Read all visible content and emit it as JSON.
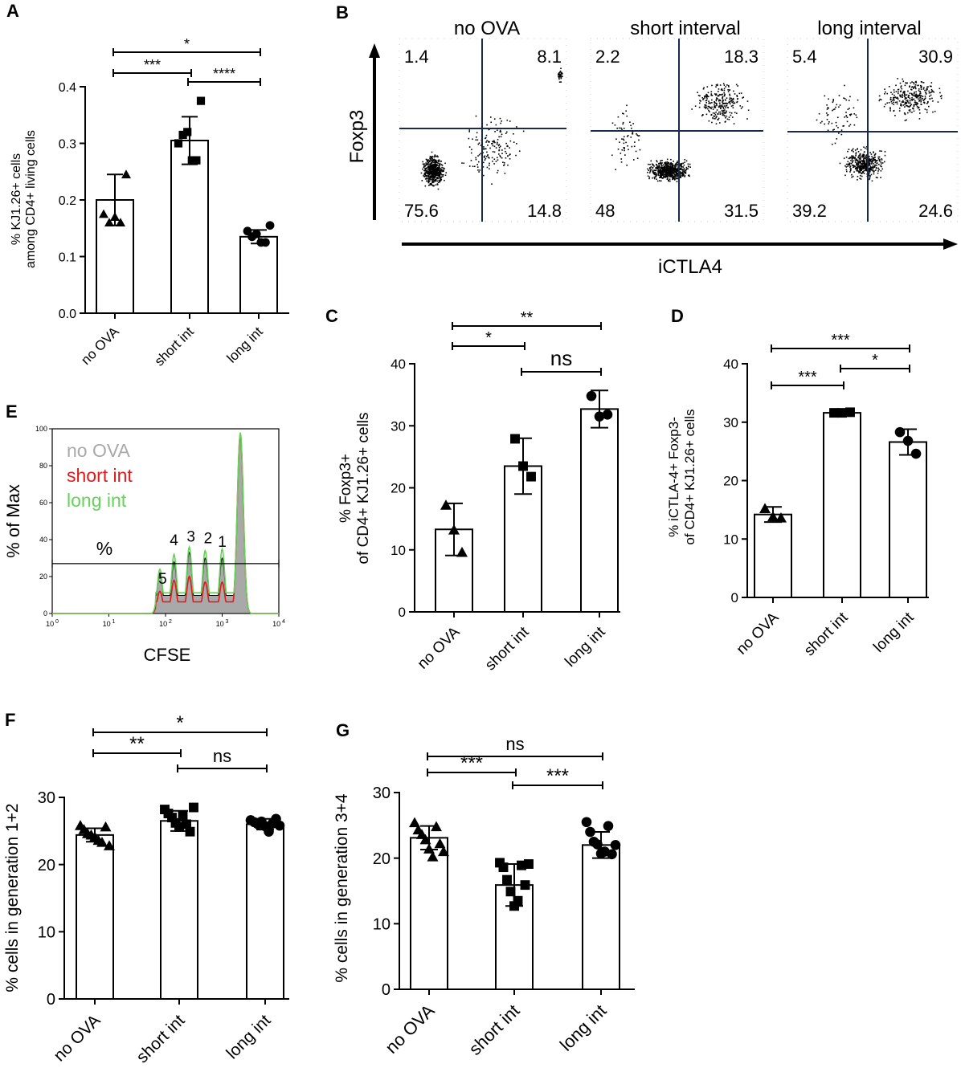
{
  "figure": {
    "panel_letters": [
      "A",
      "B",
      "C",
      "D",
      "E",
      "F",
      "G"
    ]
  },
  "chart_data": [
    {
      "panel": "A",
      "type": "bar",
      "ylabel": "% KJ1.26+ cells among CD4+ living cells",
      "ylabel_lines": [
        "% KJ1.26+ cells",
        "among CD4+ living cells"
      ],
      "categories": [
        "no OVA",
        "short int",
        "long int"
      ],
      "values": [
        0.2,
        0.305,
        0.135
      ],
      "errors": [
        0.045,
        0.042,
        0.012
      ],
      "markers": [
        "triangle",
        "square",
        "circle"
      ],
      "points": [
        [
          0.175,
          0.16,
          0.17,
          0.16,
          0.245
        ],
        [
          0.3,
          0.315,
          0.32,
          0.27,
          0.27,
          0.375
        ],
        [
          0.145,
          0.135,
          0.14,
          0.125,
          0.125,
          0.155
        ]
      ],
      "ylim": [
        0,
        0.4
      ],
      "yticks": [
        0.0,
        0.1,
        0.2,
        0.3,
        0.4
      ],
      "ytick_labels": [
        "0.0",
        "0.1",
        "0.2",
        "0.3",
        "0.4"
      ],
      "comparisons": [
        {
          "from": 0,
          "to": 2,
          "label": "*"
        },
        {
          "from": 0,
          "to": 1,
          "label": "***"
        },
        {
          "from": 1,
          "to": 2,
          "label": "****"
        }
      ]
    },
    {
      "panel": "B",
      "type": "scatter",
      "xlabel": "iCTLA4",
      "ylabel": "Foxp3",
      "plots": [
        {
          "title": "no OVA",
          "quadrants": {
            "upper_left": "1.4",
            "upper_right": "8.1",
            "lower_left": "75.6",
            "lower_right": "14.8"
          }
        },
        {
          "title": "short interval",
          "quadrants": {
            "upper_left": "2.2",
            "upper_right": "18.3",
            "lower_left": "48",
            "lower_right": "31.5"
          }
        },
        {
          "title": "long interval",
          "quadrants": {
            "upper_left": "5.4",
            "upper_right": "30.9",
            "lower_left": "39.2",
            "lower_right": "24.6"
          }
        }
      ]
    },
    {
      "panel": "C",
      "type": "bar",
      "ylabel": "% Foxp3+ of CD4+ KJ1.26+ cells",
      "ylabel_lines": [
        "% Foxp3+",
        "of CD4+ KJ1.26+ cells"
      ],
      "categories": [
        "no OVA",
        "short int",
        "long int"
      ],
      "values": [
        13.3,
        23.5,
        32.7
      ],
      "errors": [
        4.2,
        4.5,
        3.0
      ],
      "markers": [
        "triangle",
        "square",
        "circle"
      ],
      "points": [
        [
          17.2,
          13.2,
          9.6
        ],
        [
          27.9,
          23.5,
          21.8
        ],
        [
          34.8,
          31.5,
          31.8
        ]
      ],
      "ylim": [
        0,
        40
      ],
      "yticks": [
        0,
        10,
        20,
        30,
        40
      ],
      "ytick_labels": [
        "0",
        "10",
        "20",
        "30",
        "40"
      ],
      "comparisons": [
        {
          "from": 0,
          "to": 2,
          "label": "**"
        },
        {
          "from": 0,
          "to": 1,
          "label": "*"
        },
        {
          "from": 1,
          "to": 2,
          "label": "ns"
        }
      ]
    },
    {
      "panel": "D",
      "type": "bar",
      "ylabel": "% iCTLA-4+ Foxp3- of CD4+ KJ1.26+ cells",
      "ylabel_lines": [
        "% iCTLA-4+ Foxp3-",
        "of CD4+ KJ1.26+ cells"
      ],
      "categories": [
        "no OVA",
        "short int",
        "long int"
      ],
      "values": [
        14.2,
        31.6,
        26.6
      ],
      "errors": [
        1.3,
        0.3,
        2.2
      ],
      "markers": [
        "triangle",
        "square",
        "circle"
      ],
      "points": [
        [
          15.2,
          13.8,
          13.6
        ],
        [
          31.6,
          31.6,
          31.7
        ],
        [
          28.3,
          26.8,
          24.6
        ]
      ],
      "ylim": [
        0,
        40
      ],
      "yticks": [
        0,
        10,
        20,
        30,
        40
      ],
      "ytick_labels": [
        "0",
        "10",
        "20",
        "30",
        "40"
      ],
      "comparisons": [
        {
          "from": 0,
          "to": 2,
          "label": "***"
        },
        {
          "from": 0,
          "to": 1,
          "label": "***"
        },
        {
          "from": 1,
          "to": 2,
          "label": "*"
        }
      ]
    },
    {
      "panel": "E",
      "type": "area",
      "xlabel": "CFSE",
      "ylabel": "% of Max",
      "xlim_log10": [
        0,
        4
      ],
      "xtick_bases": [
        "10",
        "10",
        "10",
        "10",
        "10"
      ],
      "xtick_exponents": [
        "0",
        "1",
        "2",
        "3",
        "4"
      ],
      "ylim": [
        0,
        100
      ],
      "yticks": [
        0,
        20,
        40,
        60,
        80,
        100
      ],
      "ytick_labels": [
        "0",
        "20",
        "40",
        "60",
        "80",
        "100"
      ],
      "legend": [
        "no OVA",
        "short int",
        "long int"
      ],
      "colors": {
        "no OVA": "#a9a9a9",
        "short int": "#e0191a",
        "long int": "#66d25a"
      },
      "gate_label": "%",
      "gate_y": 27,
      "gate_x_log10": [
        0,
        4
      ],
      "peak_labels": [
        {
          "label": "5",
          "x_log10": 1.95,
          "y": 16
        },
        {
          "label": "4",
          "x_log10": 2.15,
          "y": 37
        },
        {
          "label": "3",
          "x_log10": 2.45,
          "y": 39
        },
        {
          "label": "2",
          "x_log10": 2.75,
          "y": 38
        },
        {
          "label": "1",
          "x_log10": 3.0,
          "y": 36
        }
      ],
      "peaks_log10": [
        1.9,
        2.15,
        2.42,
        2.7,
        3.0,
        3.32
      ],
      "series": [
        {
          "name": "no OVA",
          "heights": [
            22,
            28,
            33,
            30,
            30,
            97
          ]
        },
        {
          "name": "short int",
          "heights": [
            12,
            18,
            20,
            17,
            17,
            97
          ]
        },
        {
          "name": "long int",
          "heights": [
            24,
            32,
            36,
            34,
            35,
            98
          ]
        }
      ]
    },
    {
      "panel": "F",
      "type": "bar",
      "ylabel": "% cells in generation 1+2",
      "categories": [
        "no OVA",
        "short int",
        "long int"
      ],
      "values": [
        24.4,
        26.5,
        26.0
      ],
      "errors": [
        1.0,
        1.5,
        0.8
      ],
      "markers": [
        "triangle",
        "square",
        "circle"
      ],
      "points": [
        [
          25.8,
          25.2,
          24.6,
          24.4,
          24.1,
          23.6,
          23.3,
          25.6,
          22.8
        ],
        [
          28.2,
          27.6,
          27.0,
          26.2,
          25.6,
          27.3,
          26.0,
          24.9,
          28.5
        ],
        [
          26.6,
          26.3,
          26.0,
          26.4,
          25.7,
          24.9,
          26.1,
          26.8,
          25.8
        ]
      ],
      "ylim": [
        0,
        30
      ],
      "yticks": [
        0,
        10,
        20,
        30
      ],
      "ytick_labels": [
        "0",
        "10",
        "20",
        "30"
      ],
      "comparisons": [
        {
          "from": 0,
          "to": 2,
          "label": "*"
        },
        {
          "from": 0,
          "to": 1,
          "label": "**"
        },
        {
          "from": 1,
          "to": 2,
          "label": "ns"
        }
      ]
    },
    {
      "panel": "G",
      "type": "bar",
      "ylabel": "% cells in generation 3+4",
      "categories": [
        "no OVA",
        "short int",
        "long int"
      ],
      "values": [
        23.1,
        15.9,
        22.0
      ],
      "errors": [
        1.8,
        3.2,
        2.0
      ],
      "markers": [
        "triangle",
        "square",
        "circle"
      ],
      "points": [
        [
          25.4,
          24.3,
          23.6,
          22.8,
          21.4,
          20.2,
          24.8,
          22.2,
          21.0
        ],
        [
          19.3,
          18.6,
          16.7,
          14.9,
          12.7,
          13.5,
          18.9,
          15.9,
          19.1
        ],
        [
          25.5,
          24.0,
          22.5,
          22.1,
          20.7,
          21.0,
          24.9,
          20.6,
          22.0
        ]
      ],
      "ylim": [
        0,
        30
      ],
      "yticks": [
        0,
        10,
        20,
        30
      ],
      "ytick_labels": [
        "0",
        "10",
        "20",
        "30"
      ],
      "comparisons": [
        {
          "from": 0,
          "to": 2,
          "label": "ns"
        },
        {
          "from": 0,
          "to": 1,
          "label": "***"
        },
        {
          "from": 1,
          "to": 2,
          "label": "***"
        }
      ]
    }
  ]
}
